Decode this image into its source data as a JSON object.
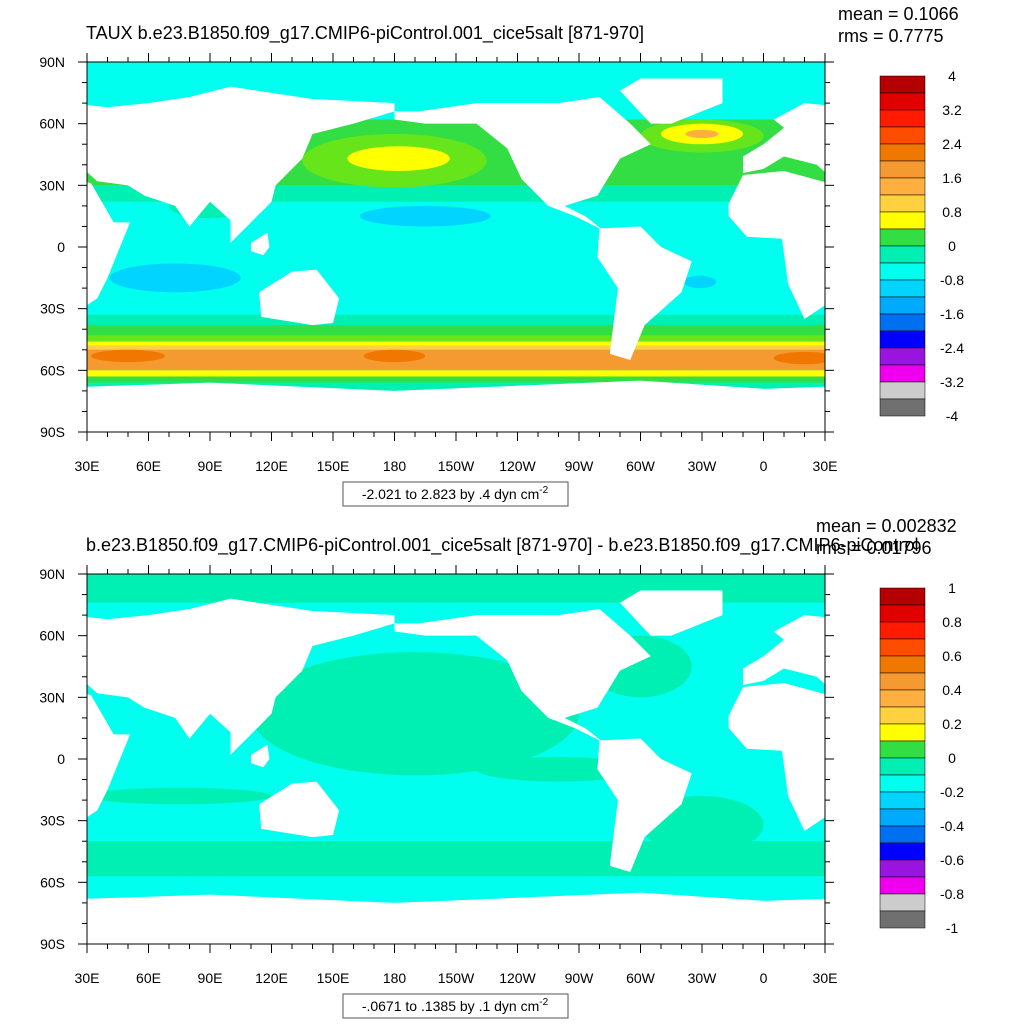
{
  "panels": [
    {
      "title": "TAUX b.e23.B1850.f09_g17.CMIP6-piControl.001_cice5salt [871-970]",
      "mean": "mean = 0.1066",
      "rms": "rms = 0.7775",
      "lat_labels": [
        "90N",
        "60N",
        "30N",
        "0",
        "30S",
        "60S",
        "90S"
      ],
      "lon_labels": [
        "30E",
        "60E",
        "90E",
        "120E",
        "150E",
        "180",
        "150W",
        "120W",
        "90W",
        "60W",
        "30W",
        "0",
        "30E"
      ],
      "colorbar_labels": [
        "4",
        "3.2",
        "2.4",
        "1.6",
        "0.8",
        "0",
        "-0.8",
        "-1.6",
        "-2.4",
        "-3.2",
        "-4"
      ],
      "caption": "-2.021 to 2.823 by .4 dyn cm",
      "caption_sup": "-2"
    },
    {
      "title": "b.e23.B1850.f09_g17.CMIP6-piControl.001_cice5salt [871-970] - b.e23.B1850.f09_g17.CMIP6-piControl",
      "mean": "mean = 0.002832",
      "rms": "rms = 0.01796",
      "lat_labels": [
        "90N",
        "60N",
        "30N",
        "0",
        "30S",
        "60S",
        "90S"
      ],
      "lon_labels": [
        "30E",
        "60E",
        "90E",
        "120E",
        "150E",
        "180",
        "150W",
        "120W",
        "90W",
        "60W",
        "30W",
        "0",
        "30E"
      ],
      "colorbar_labels": [
        "1",
        "0.8",
        "0.6",
        "0.4",
        "0.2",
        "0",
        "-0.2",
        "-0.4",
        "-0.6",
        "-0.8",
        "-1"
      ],
      "caption": "-.0671 to .1385 by .1 dyn cm",
      "caption_sup": "-2"
    }
  ],
  "palette": [
    "#b40000",
    "#e00000",
    "#ff1a00",
    "#ff4d00",
    "#f07800",
    "#f59a30",
    "#ffae40",
    "#ffd040",
    "#ffff00",
    "#66e61a",
    "#33dd44",
    "#00f0b4",
    "#00ffee",
    "#00d4ff",
    "#00aaff",
    "#0070f0",
    "#0000ff",
    "#9a14e0",
    "#ee00ee",
    "#cccccc",
    "#707070"
  ]
}
